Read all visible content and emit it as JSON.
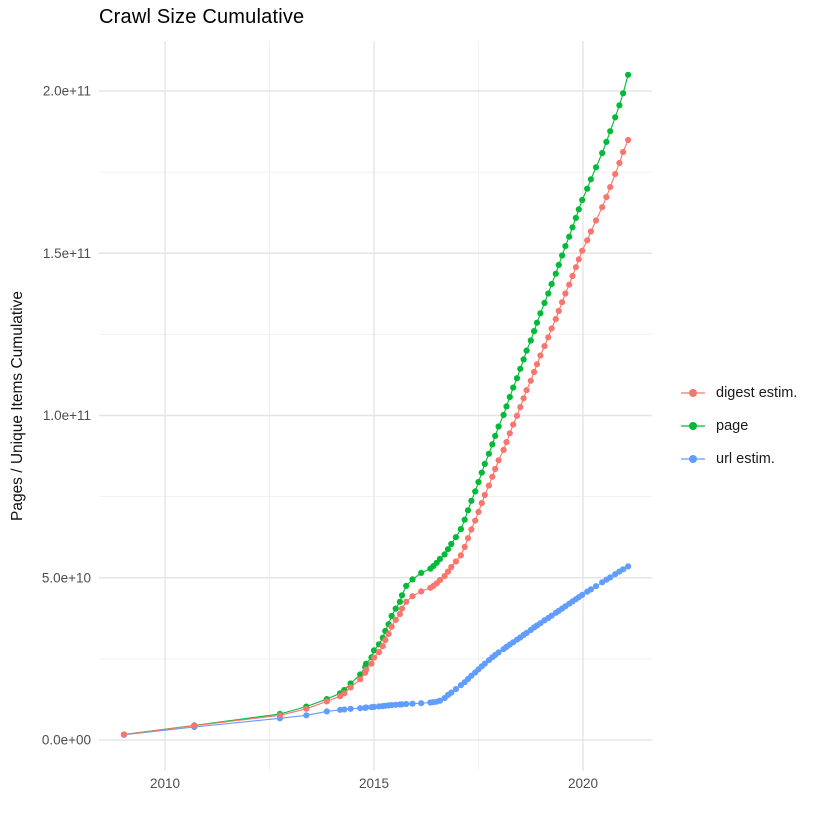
{
  "title": "Crawl Size Cumulative",
  "y_axis": {
    "label": "Pages / Unique Items Cumulative",
    "tick_labels": [
      "0.0e+00",
      "5.0e+10",
      "1.0e+11",
      "1.5e+11",
      "2.0e+11"
    ],
    "tick_values_billions": [
      0,
      50,
      100,
      150,
      200
    ],
    "minor_values_billions": [
      25,
      75,
      125,
      175
    ]
  },
  "x_axis": {
    "tick_labels": [
      "2010",
      "2015",
      "2020"
    ],
    "tick_values": [
      2010,
      2015,
      2020
    ],
    "minor_values": [
      2012.5,
      2017.5
    ]
  },
  "legend": {
    "items": [
      {
        "label": "digest estim.",
        "color": "#F8766D"
      },
      {
        "label": "page",
        "color": "#00BA38"
      },
      {
        "label": "url estim.",
        "color": "#619CFF"
      }
    ]
  },
  "chart_data": {
    "type": "scatter",
    "style": "points-with-line",
    "title": "Crawl Size Cumulative",
    "xlabel": "",
    "ylabel": "Pages / Unique Items Cumulative",
    "x_unit": "decimal year (crawl date)",
    "y_unit": "items cumulative, billions (1e9)",
    "grid": true,
    "legend_position": "right",
    "xlim": [
      2008.42,
      2021.65
    ],
    "ylim_billions": [
      0,
      215
    ],
    "x": [
      2009.02,
      2010.7,
      2012.75,
      2013.38,
      2013.87,
      2014.19,
      2014.29,
      2014.44,
      2014.67,
      2014.79,
      2014.81,
      2014.94,
      2015.0,
      2015.12,
      2015.21,
      2015.27,
      2015.35,
      2015.42,
      2015.52,
      2015.62,
      2015.67,
      2015.77,
      2015.92,
      2016.13,
      2016.35,
      2016.42,
      2016.5,
      2016.58,
      2016.69,
      2016.77,
      2016.85,
      2016.96,
      2017.08,
      2017.17,
      2017.25,
      2017.33,
      2017.42,
      2017.5,
      2017.58,
      2017.65,
      2017.75,
      2017.83,
      2017.9,
      2017.98,
      2018.1,
      2018.17,
      2018.25,
      2018.33,
      2018.42,
      2018.5,
      2018.58,
      2018.65,
      2018.75,
      2018.83,
      2018.9,
      2018.98,
      2019.08,
      2019.17,
      2019.25,
      2019.35,
      2019.42,
      2019.5,
      2019.58,
      2019.67,
      2019.75,
      2019.83,
      2019.9,
      2019.98,
      2020.1,
      2020.19,
      2020.31,
      2020.46,
      2020.56,
      2020.65,
      2020.77,
      2020.87,
      2020.96,
      2021.08
    ],
    "series": [
      {
        "name": "digest estim.",
        "color": "#F8766D",
        "values_billions": [
          1.7,
          4.4,
          7.6,
          9.6,
          11.9,
          13.5,
          14.4,
          16.2,
          18.7,
          20.7,
          21.7,
          23.5,
          25.4,
          27.1,
          28.9,
          30.8,
          32.7,
          34.9,
          37.0,
          38.8,
          40.5,
          42.6,
          44.3,
          45.8,
          46.9,
          47.5,
          48.3,
          49.3,
          50.5,
          51.9,
          53.3,
          55.0,
          56.9,
          59.5,
          62.2,
          64.9,
          67.6,
          70.3,
          73.0,
          75.5,
          78.4,
          81.1,
          83.5,
          86.2,
          89.4,
          91.8,
          94.5,
          97.2,
          99.9,
          102.6,
          105.3,
          107.8,
          110.7,
          113.4,
          115.8,
          118.5,
          121.4,
          124.1,
          126.8,
          129.7,
          132.2,
          134.9,
          137.6,
          140.3,
          143.0,
          145.7,
          148.1,
          150.8,
          154.0,
          156.7,
          160.1,
          164.2,
          167.3,
          170.4,
          174.4,
          177.8,
          181.2,
          184.9
        ]
      },
      {
        "name": "page",
        "color": "#00BA38",
        "values_billions": [
          1.7,
          4.5,
          8.0,
          10.3,
          12.6,
          14.4,
          15.4,
          17.4,
          20.2,
          22.4,
          23.5,
          25.5,
          27.6,
          29.5,
          31.5,
          33.6,
          35.7,
          38.2,
          40.5,
          42.6,
          44.6,
          47.5,
          49.5,
          51.5,
          52.8,
          53.6,
          54.6,
          55.8,
          57.2,
          58.8,
          60.4,
          62.5,
          65.0,
          67.9,
          70.8,
          73.7,
          76.6,
          79.5,
          82.4,
          85.1,
          88.2,
          91.1,
          93.7,
          96.6,
          100.2,
          102.8,
          105.7,
          108.6,
          111.5,
          114.4,
          117.3,
          120.0,
          123.1,
          126.0,
          128.6,
          131.5,
          134.7,
          137.6,
          140.5,
          143.7,
          146.4,
          149.3,
          152.2,
          155.1,
          158.0,
          160.9,
          163.5,
          166.4,
          169.9,
          172.8,
          176.5,
          180.9,
          184.3,
          187.6,
          191.9,
          195.6,
          199.3,
          205.0
        ]
      },
      {
        "name": "url estim.",
        "color": "#619CFF",
        "values_billions": [
          1.6,
          4.0,
          6.7,
          7.6,
          8.8,
          9.3,
          9.4,
          9.6,
          9.8,
          9.9,
          10.0,
          10.1,
          10.2,
          10.35,
          10.45,
          10.55,
          10.65,
          10.75,
          10.85,
          10.95,
          11.0,
          11.1,
          11.2,
          11.35,
          11.55,
          11.65,
          11.8,
          12.1,
          12.9,
          13.9,
          14.6,
          15.7,
          16.9,
          17.8,
          18.8,
          19.8,
          20.8,
          21.8,
          22.7,
          23.5,
          24.6,
          25.5,
          26.2,
          27.0,
          28.0,
          28.7,
          29.4,
          30.1,
          30.9,
          31.6,
          32.4,
          33.0,
          33.9,
          34.7,
          35.3,
          36.0,
          36.9,
          37.6,
          38.3,
          39.2,
          39.8,
          40.5,
          41.2,
          42.0,
          42.7,
          43.4,
          44.0,
          44.7,
          45.7,
          46.4,
          47.4,
          48.6,
          49.4,
          50.1,
          51.1,
          51.9,
          52.6,
          53.5
        ]
      }
    ],
    "draw_order": [
      "url estim.",
      "page",
      "digest estim."
    ]
  }
}
